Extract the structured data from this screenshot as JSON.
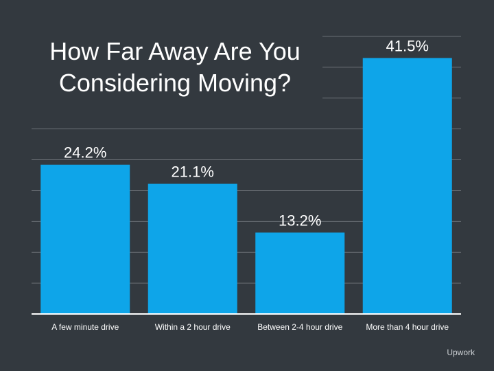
{
  "chart_data": {
    "type": "bar",
    "title": "How Far Away Are You Considering Moving?",
    "categories": [
      "A few minute drive",
      "Within a 2 hour drive",
      "Between 2-4 hour drive",
      "More than 4 hour drive"
    ],
    "values": [
      24.2,
      21.1,
      13.2,
      41.5
    ],
    "value_labels": [
      "24.2%",
      "21.1%",
      "13.2%",
      "41.5%"
    ],
    "ylim": [
      0,
      45
    ],
    "grid": true,
    "colors": {
      "bar": "#0ea5e9",
      "background": "#33393f",
      "grid": "#6a6f75"
    }
  },
  "source": "Upwork"
}
